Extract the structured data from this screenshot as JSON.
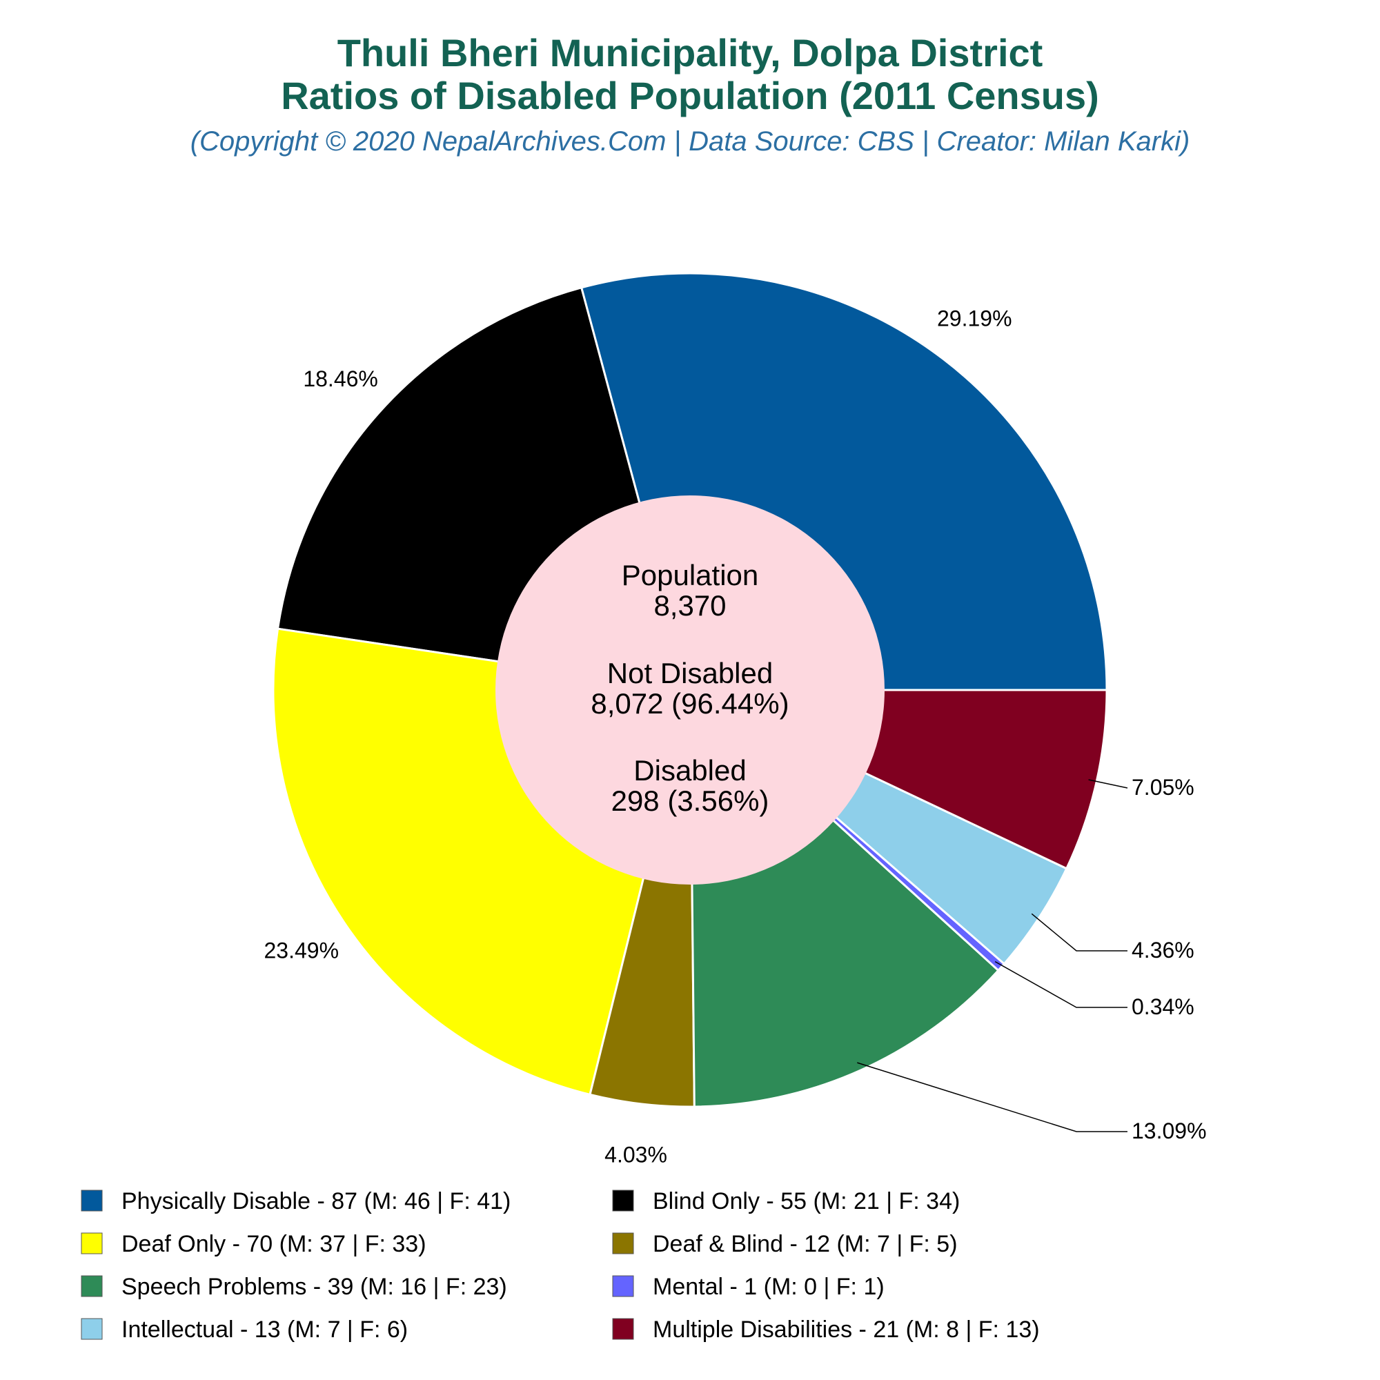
{
  "chart_data": {
    "type": "pie",
    "title_line1": "Thuli Bheri Municipality, Dolpa District",
    "title_line2": "Ratios of Disabled Population (2011 Census)",
    "subtitle": "(Copyright © 2020 NepalArchives.Com | Data Source: CBS | Creator: Milan Karki)",
    "center": {
      "population_label": "Population",
      "population_value": "8,370",
      "not_disabled_label": "Not Disabled",
      "not_disabled_value": "8,072 (96.44%)",
      "disabled_label": "Disabled",
      "disabled_value": "298 (3.56%)"
    },
    "slices": [
      {
        "legend": "Physically Disable - 87 (M: 46 | F: 41)",
        "value": 87,
        "pct_label": "29.19%",
        "color": "#02599c"
      },
      {
        "legend": "Blind Only - 55 (M: 21 | F: 34)",
        "value": 55,
        "pct_label": "18.46%",
        "color": "#000000"
      },
      {
        "legend": "Deaf Only - 70 (M: 37 | F: 33)",
        "value": 70,
        "pct_label": "23.49%",
        "color": "#ffff00"
      },
      {
        "legend": "Deaf & Blind - 12 (M: 7 | F: 5)",
        "value": 12,
        "pct_label": "4.03%",
        "color": "#8b7500"
      },
      {
        "legend": "Speech Problems - 39 (M: 16 | F: 23)",
        "value": 39,
        "pct_label": "13.09%",
        "color": "#2e8b57"
      },
      {
        "legend": "Mental - 1 (M: 0 | F: 1)",
        "value": 1,
        "pct_label": "0.34%",
        "color": "#6464ff"
      },
      {
        "legend": "Intellectual - 13 (M: 7 | F: 6)",
        "value": 13,
        "pct_label": "4.36%",
        "color": "#8ecfea"
      },
      {
        "legend": "Multiple Disabilities - 21 (M: 8 | F: 13)",
        "value": 21,
        "pct_label": "7.05%",
        "color": "#800020"
      }
    ],
    "legend_placement": "bottom"
  }
}
